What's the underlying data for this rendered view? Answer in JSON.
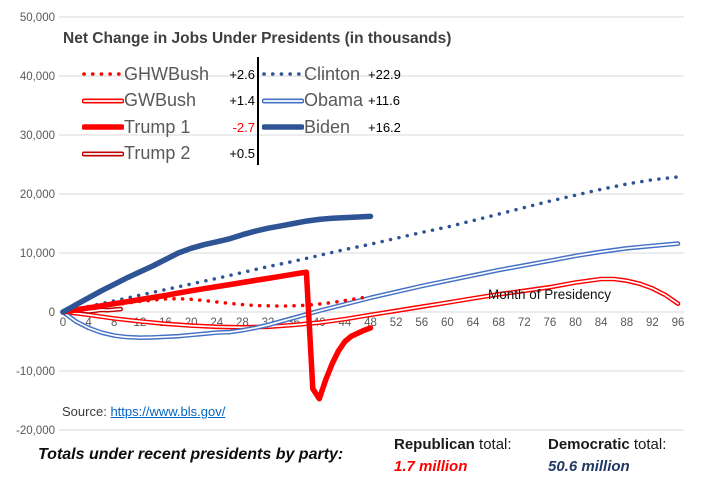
{
  "title": "Net Change in Jobs Under Presidents (in thousands)",
  "chart_data": {
    "type": "line",
    "title": "Net Change in Jobs Under Presidents (in thousands)",
    "xlabel": "Month of Presidency",
    "ylabel": "",
    "grid": true,
    "x_range": [
      0,
      96
    ],
    "y_range": [
      -20000,
      50000
    ],
    "x_ticks": [
      0,
      4,
      8,
      12,
      16,
      20,
      24,
      28,
      32,
      36,
      40,
      44,
      48,
      52,
      56,
      60,
      64,
      68,
      72,
      76,
      80,
      84,
      88,
      92,
      96
    ],
    "y_ticks": [
      {
        "label": "50,000",
        "value": 50000
      },
      {
        "label": "40,000",
        "value": 40000
      },
      {
        "label": "30,000",
        "value": 30000
      },
      {
        "label": "20,000",
        "value": 20000
      },
      {
        "label": "10,000",
        "value": 10000
      },
      {
        "label": "0",
        "value": 0
      },
      {
        "label": "-10,000",
        "value": -10000
      },
      {
        "label": "-20,000",
        "value": -20000
      }
    ],
    "legend_columns": {
      "left": [
        "GHWBush",
        "GWBush",
        "Trump 1",
        "Trump 2"
      ],
      "right": [
        "Clinton",
        "Obama",
        "Biden"
      ]
    },
    "draw_order": [
      "GWBush",
      "Obama",
      "GHWBush",
      "Clinton",
      "Trump 2",
      "Trump 1",
      "Biden"
    ],
    "series": [
      {
        "name": "GHWBush",
        "legend_value": "+2.6",
        "value_color": "#000000",
        "color": "#FF0000",
        "style": "dotted",
        "points": [
          [
            0,
            0
          ],
          [
            2,
            300
          ],
          [
            4,
            600
          ],
          [
            6,
            900
          ],
          [
            8,
            1200
          ],
          [
            10,
            1500
          ],
          [
            12,
            1800
          ],
          [
            14,
            2000
          ],
          [
            16,
            2200
          ],
          [
            18,
            2250
          ],
          [
            20,
            2150
          ],
          [
            22,
            1950
          ],
          [
            24,
            1700
          ],
          [
            26,
            1450
          ],
          [
            28,
            1250
          ],
          [
            30,
            1100
          ],
          [
            32,
            1050
          ],
          [
            34,
            1000
          ],
          [
            36,
            1050
          ],
          [
            38,
            1150
          ],
          [
            40,
            1350
          ],
          [
            42,
            1600
          ],
          [
            44,
            1950
          ],
          [
            46,
            2300
          ],
          [
            48,
            2600
          ]
        ]
      },
      {
        "name": "GWBush",
        "legend_value": "+1.4",
        "value_color": "#000000",
        "color": "#FF0000",
        "style": "double",
        "points": [
          [
            0,
            0
          ],
          [
            2,
            -200
          ],
          [
            4,
            -500
          ],
          [
            8,
            -1100
          ],
          [
            12,
            -1600
          ],
          [
            16,
            -2000
          ],
          [
            20,
            -2300
          ],
          [
            24,
            -2500
          ],
          [
            28,
            -2600
          ],
          [
            32,
            -2500
          ],
          [
            36,
            -2200
          ],
          [
            40,
            -1800
          ],
          [
            44,
            -1200
          ],
          [
            48,
            -500
          ],
          [
            52,
            200
          ],
          [
            56,
            900
          ],
          [
            60,
            1600
          ],
          [
            64,
            2300
          ],
          [
            68,
            3000
          ],
          [
            72,
            3600
          ],
          [
            76,
            4200
          ],
          [
            80,
            5000
          ],
          [
            84,
            5600
          ],
          [
            86,
            5600
          ],
          [
            88,
            5300
          ],
          [
            90,
            4800
          ],
          [
            92,
            4000
          ],
          [
            94,
            2900
          ],
          [
            96,
            1400
          ]
        ]
      },
      {
        "name": "Trump 1",
        "legend_value": "-2.7",
        "value_color": "#FF0000",
        "color": "#FF0000",
        "style": "thick",
        "points": [
          [
            0,
            0
          ],
          [
            2,
            350
          ],
          [
            4,
            700
          ],
          [
            6,
            1050
          ],
          [
            8,
            1400
          ],
          [
            10,
            1750
          ],
          [
            12,
            2100
          ],
          [
            14,
            2450
          ],
          [
            16,
            2800
          ],
          [
            18,
            3200
          ],
          [
            20,
            3600
          ],
          [
            22,
            3950
          ],
          [
            24,
            4300
          ],
          [
            26,
            4650
          ],
          [
            28,
            5000
          ],
          [
            30,
            5350
          ],
          [
            32,
            5700
          ],
          [
            34,
            6050
          ],
          [
            36,
            6400
          ],
          [
            37,
            6600
          ],
          [
            38,
            6750
          ],
          [
            39,
            -13000
          ],
          [
            40,
            -14700
          ],
          [
            41,
            -11500
          ],
          [
            42,
            -8800
          ],
          [
            43,
            -6600
          ],
          [
            44,
            -5000
          ],
          [
            45,
            -4100
          ],
          [
            46,
            -3600
          ],
          [
            47,
            -3100
          ],
          [
            48,
            -2700
          ]
        ]
      },
      {
        "name": "Trump 2",
        "legend_value": "+0.5",
        "value_color": "#000000",
        "color": "#C00000",
        "style": "double",
        "points": [
          [
            0,
            0
          ],
          [
            1,
            150
          ],
          [
            2,
            250
          ],
          [
            3,
            200
          ],
          [
            4,
            100
          ],
          [
            5,
            200
          ],
          [
            6,
            350
          ],
          [
            7,
            300
          ],
          [
            8,
            400
          ],
          [
            9,
            500
          ]
        ]
      },
      {
        "name": "Clinton",
        "legend_value": "+22.9",
        "value_color": "#000000",
        "color": "#2F5496",
        "style": "dotted",
        "points": [
          [
            0,
            0
          ],
          [
            4,
            950
          ],
          [
            8,
            1900
          ],
          [
            12,
            2850
          ],
          [
            16,
            3800
          ],
          [
            20,
            4750
          ],
          [
            24,
            5700
          ],
          [
            28,
            6700
          ],
          [
            32,
            7700
          ],
          [
            36,
            8600
          ],
          [
            40,
            9600
          ],
          [
            44,
            10600
          ],
          [
            48,
            11500
          ],
          [
            52,
            12500
          ],
          [
            56,
            13500
          ],
          [
            60,
            14400
          ],
          [
            64,
            15500
          ],
          [
            68,
            16600
          ],
          [
            72,
            17700
          ],
          [
            76,
            18800
          ],
          [
            80,
            19800
          ],
          [
            84,
            20800
          ],
          [
            88,
            21700
          ],
          [
            92,
            22400
          ],
          [
            96,
            22900
          ]
        ]
      },
      {
        "name": "Obama",
        "legend_value": "+11.6",
        "value_color": "#000000",
        "color": "#4472C4",
        "style": "double",
        "points": [
          [
            0,
            0
          ],
          [
            2,
            -1600
          ],
          [
            4,
            -2700
          ],
          [
            6,
            -3500
          ],
          [
            8,
            -4000
          ],
          [
            10,
            -4250
          ],
          [
            12,
            -4350
          ],
          [
            14,
            -4300
          ],
          [
            16,
            -4200
          ],
          [
            18,
            -4100
          ],
          [
            20,
            -3900
          ],
          [
            22,
            -3700
          ],
          [
            24,
            -3500
          ],
          [
            26,
            -3400
          ],
          [
            28,
            -3100
          ],
          [
            30,
            -2700
          ],
          [
            32,
            -2200
          ],
          [
            34,
            -1600
          ],
          [
            36,
            -1000
          ],
          [
            38,
            -400
          ],
          [
            40,
            200
          ],
          [
            44,
            1300
          ],
          [
            48,
            2400
          ],
          [
            52,
            3400
          ],
          [
            56,
            4400
          ],
          [
            60,
            5300
          ],
          [
            64,
            6200
          ],
          [
            68,
            7100
          ],
          [
            72,
            7900
          ],
          [
            76,
            8700
          ],
          [
            80,
            9500
          ],
          [
            84,
            10200
          ],
          [
            88,
            10800
          ],
          [
            92,
            11200
          ],
          [
            96,
            11600
          ]
        ]
      },
      {
        "name": "Biden",
        "legend_value": "+16.2",
        "value_color": "#000000",
        "color": "#2F5496",
        "style": "thick",
        "points": [
          [
            0,
            0
          ],
          [
            2,
            1200
          ],
          [
            4,
            2400
          ],
          [
            6,
            3600
          ],
          [
            8,
            4700
          ],
          [
            10,
            5800
          ],
          [
            12,
            6800
          ],
          [
            14,
            7800
          ],
          [
            16,
            8900
          ],
          [
            18,
            10000
          ],
          [
            20,
            10800
          ],
          [
            22,
            11400
          ],
          [
            24,
            11900
          ],
          [
            26,
            12400
          ],
          [
            28,
            13100
          ],
          [
            30,
            13700
          ],
          [
            32,
            14200
          ],
          [
            34,
            14600
          ],
          [
            36,
            15000
          ],
          [
            38,
            15400
          ],
          [
            40,
            15700
          ],
          [
            42,
            15900
          ],
          [
            44,
            16000
          ],
          [
            46,
            16100
          ],
          [
            48,
            16200
          ]
        ]
      }
    ]
  },
  "source": {
    "prefix": "Source:",
    "url": "https://www.bls.gov/"
  },
  "footer": {
    "lead": "Totals under recent presidents by party:",
    "republican": {
      "party": "Republican",
      "suffix": " total:",
      "value": "1.7 million"
    },
    "democratic": {
      "party": "Democratic",
      "suffix": " total:",
      "value": "50.6 million"
    }
  },
  "colors": {
    "gridline": "#D9D9D9",
    "axis_text": "#595959",
    "legend_text": "#595959",
    "republican_red": "#FF0000",
    "trump2_dark_red": "#C00000",
    "dem_dark_blue": "#2F5496",
    "obama_blue": "#4472C4",
    "link_blue": "#0563C1",
    "dem_total_navy": "#203864"
  }
}
